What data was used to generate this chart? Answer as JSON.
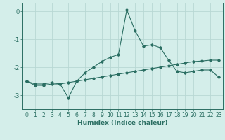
{
  "line1_x": [
    0,
    1,
    2,
    3,
    4,
    5,
    6,
    7,
    8,
    9,
    10,
    11,
    12,
    13,
    14,
    15,
    16,
    17,
    18,
    19,
    20,
    21,
    22,
    23
  ],
  "line1_y": [
    -2.5,
    -2.6,
    -2.6,
    -2.55,
    -2.6,
    -3.1,
    -2.5,
    -2.2,
    -2.0,
    -1.8,
    -1.65,
    -1.55,
    0.05,
    -0.7,
    -1.25,
    -1.2,
    -1.3,
    -1.75,
    -2.15,
    -2.2,
    -2.15,
    -2.1,
    -2.1,
    -2.35
  ],
  "line2_x": [
    0,
    1,
    2,
    3,
    4,
    5,
    6,
    7,
    8,
    9,
    10,
    11,
    12,
    13,
    14,
    15,
    16,
    17,
    18,
    19,
    20,
    21,
    22,
    23
  ],
  "line2_y": [
    -2.5,
    -2.65,
    -2.65,
    -2.6,
    -2.6,
    -2.55,
    -2.5,
    -2.45,
    -2.4,
    -2.35,
    -2.3,
    -2.25,
    -2.2,
    -2.15,
    -2.1,
    -2.05,
    -2.0,
    -1.95,
    -1.9,
    -1.85,
    -1.8,
    -1.78,
    -1.75,
    -1.75
  ],
  "line_color": "#2a6e62",
  "bg_color": "#d4eeea",
  "grid_color": "#b8d8d4",
  "xlabel": "Humidex (Indice chaleur)",
  "yticks": [
    0,
    -1,
    -2,
    -3
  ],
  "xticks": [
    0,
    1,
    2,
    3,
    4,
    5,
    6,
    7,
    8,
    9,
    10,
    11,
    12,
    13,
    14,
    15,
    16,
    17,
    18,
    19,
    20,
    21,
    22,
    23
  ],
  "xlim": [
    -0.5,
    23.5
  ],
  "ylim": [
    -3.5,
    0.3
  ],
  "tick_fontsize": 5.5,
  "xlabel_fontsize": 6.5
}
